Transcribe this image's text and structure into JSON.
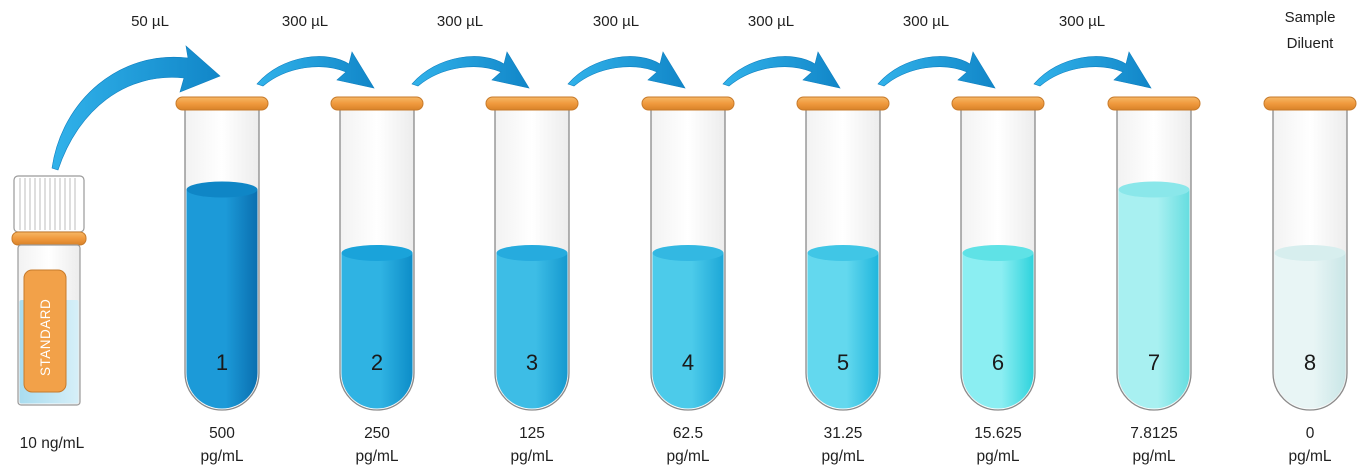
{
  "stock": {
    "label": "STANDARD",
    "concentration": "10 ng/mL"
  },
  "transfers": [
    {
      "from": "stock",
      "to": 1,
      "volume": "50 µL"
    },
    {
      "from": 1,
      "to": 2,
      "volume": "300 µL"
    },
    {
      "from": 2,
      "to": 3,
      "volume": "300 µL"
    },
    {
      "from": 3,
      "to": 4,
      "volume": "300 µL"
    },
    {
      "from": 4,
      "to": 5,
      "volume": "300 µL"
    },
    {
      "from": 5,
      "to": 6,
      "volume": "300 µL"
    },
    {
      "from": 6,
      "to": 7,
      "volume": "300 µL"
    }
  ],
  "diluent_label": [
    "Sample",
    "Diluent"
  ],
  "tubes": [
    {
      "number": "1",
      "value": "500",
      "unit": "pg/mL",
      "liquid_dark": "#0a6fb0",
      "liquid_light": "#1c9ad8",
      "top": "#0f86c6",
      "level": 0.73
    },
    {
      "number": "2",
      "value": "250",
      "unit": "pg/mL",
      "liquid_dark": "#0d8dc8",
      "liquid_light": "#2fb3e3",
      "top": "#1aa3da",
      "level": 0.52
    },
    {
      "number": "3",
      "value": "125",
      "unit": "pg/mL",
      "liquid_dark": "#1599cf",
      "liquid_light": "#3dbde6",
      "top": "#26abde",
      "level": 0.52
    },
    {
      "number": "4",
      "value": "62.5",
      "unit": "pg/mL",
      "liquid_dark": "#1da7d7",
      "liquid_light": "#4ccbea",
      "top": "#33b8e2",
      "level": 0.52
    },
    {
      "number": "5",
      "value": "31.25",
      "unit": "pg/mL",
      "liquid_dark": "#20b6dd",
      "liquid_light": "#63d8ee",
      "top": "#40c6e6",
      "level": 0.52
    },
    {
      "number": "6",
      "value": "15.625",
      "unit": "pg/mL",
      "liquid_dark": "#2fd3dc",
      "liquid_light": "#8beef2",
      "top": "#5fe2e6",
      "level": 0.52
    },
    {
      "number": "7",
      "value": "7.8125",
      "unit": "pg/mL",
      "liquid_dark": "#66dde0",
      "liquid_light": "#a8f0f1",
      "top": "#8ae7ea",
      "level": 0.73
    },
    {
      "number": "8",
      "value": "0",
      "unit": "pg/mL",
      "liquid_dark": "#c9e6e7",
      "liquid_light": "#e8f5f5",
      "top": "#d7eeee",
      "level": 0.52
    }
  ],
  "colors": {
    "arrow": "#1a9fdc",
    "cap": "#f0a04b",
    "cap_edge": "#c77a2a",
    "glass_edge": "#8a8a8a"
  }
}
